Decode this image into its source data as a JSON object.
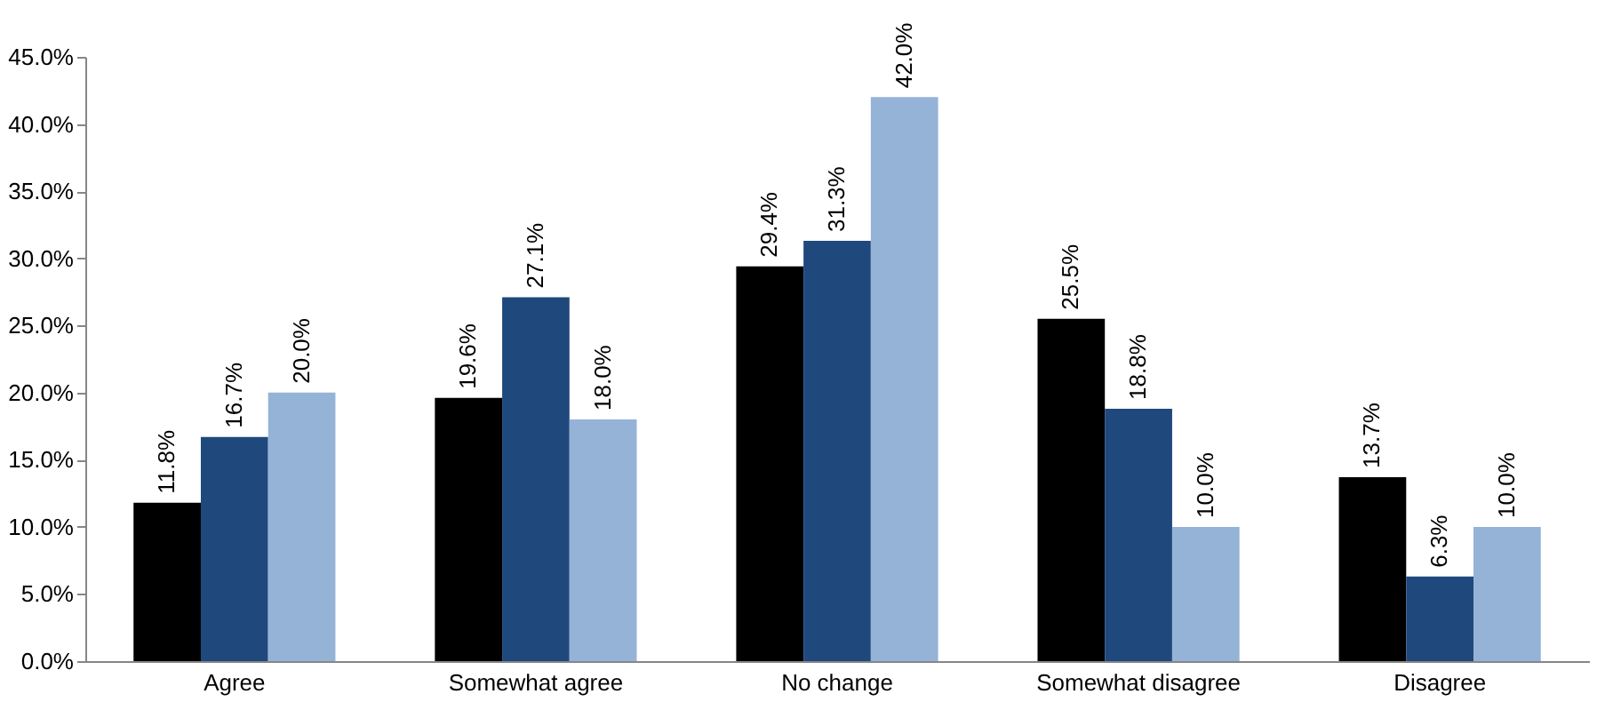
{
  "chart_data": {
    "type": "bar",
    "categories": [
      "Agree",
      "Somewhat agree",
      "No change",
      "Somewhat disagree",
      "Disagree"
    ],
    "series": [
      {
        "color": "#000000",
        "values": [
          11.8,
          19.6,
          29.4,
          25.5,
          13.7
        ],
        "value_labels": [
          "11.8%",
          "19.6%",
          "29.4%",
          "25.5%",
          "13.7%"
        ]
      },
      {
        "color": "#1f497d",
        "values": [
          16.7,
          27.1,
          31.3,
          18.8,
          6.3
        ],
        "value_labels": [
          "16.7%",
          "27.1%",
          "31.3%",
          "18.8%",
          "6.3%"
        ]
      },
      {
        "color": "#95b3d7",
        "values": [
          20.0,
          18.0,
          42.0,
          10.0,
          10.0
        ],
        "value_labels": [
          "20.0%",
          "18.0%",
          "42.0%",
          "10.0%",
          "10.0%"
        ]
      }
    ],
    "ylim": [
      0,
      45
    ],
    "yticks": [
      {
        "value": 0,
        "label": "0.0%"
      },
      {
        "value": 5,
        "label": "5.0%"
      },
      {
        "value": 10,
        "label": "10.0%"
      },
      {
        "value": 15,
        "label": "15.0%"
      },
      {
        "value": 20,
        "label": "20.0%"
      },
      {
        "value": 25,
        "label": "25.0%"
      },
      {
        "value": 30,
        "label": "30.0%"
      },
      {
        "value": 35,
        "label": "35.0%"
      },
      {
        "value": 40,
        "label": "40.0%"
      },
      {
        "value": 45,
        "label": "45.0%"
      }
    ],
    "grid": false
  }
}
